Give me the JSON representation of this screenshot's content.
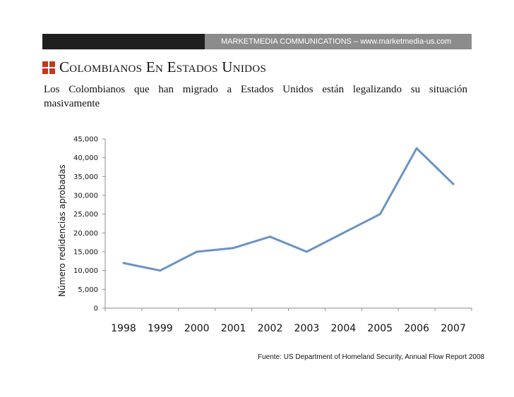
{
  "header": {
    "banner_text": "MARKETMEDIA COMMUNICATIONS – www.marketmedia-us.com"
  },
  "title": "Colombianos En Estados Unidos",
  "subtitle": "Los Colombianos que han migrado a Estados Unidos están legalizando su situación masivamente",
  "source": "Fuente: US Department of Homeland Security, Annual Flow Report 2008",
  "colors": {
    "line": "#6a93c4",
    "logo": "#c8361a"
  },
  "chart_data": {
    "type": "line",
    "title": "",
    "xlabel": "",
    "ylabel": "Número redidencias aprobadas",
    "categories": [
      "1998",
      "1999",
      "2000",
      "2001",
      "2002",
      "2003",
      "2004",
      "2005",
      "2006",
      "2007"
    ],
    "values": [
      12000,
      10000,
      15000,
      16000,
      19000,
      15000,
      20000,
      25000,
      42500,
      33000
    ],
    "ylim": [
      0,
      45000
    ],
    "yticks": [
      "0",
      "5,000",
      "10,000",
      "15,000",
      "20,000",
      "25,000",
      "30,000",
      "35,000",
      "40,000",
      "45,000"
    ],
    "grid": false,
    "legend": "none"
  }
}
